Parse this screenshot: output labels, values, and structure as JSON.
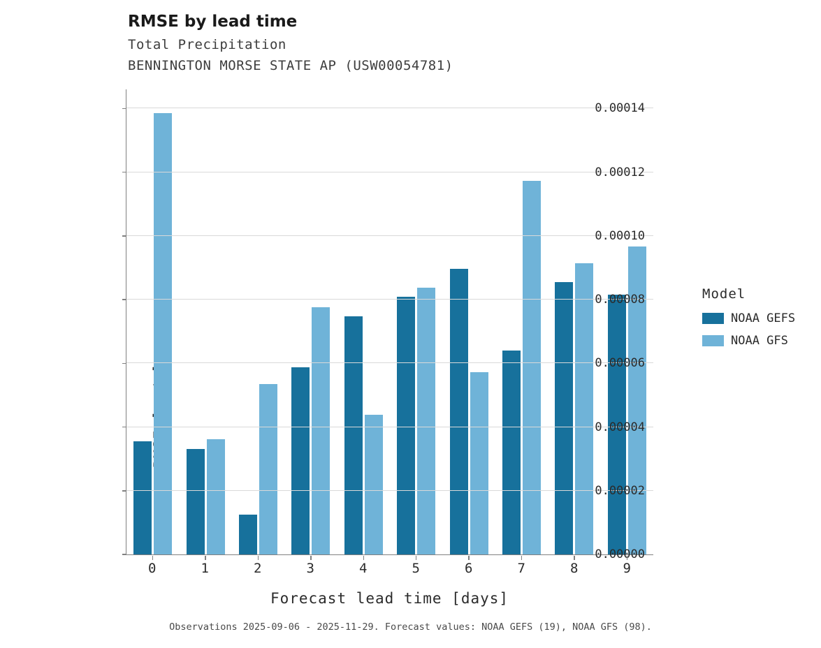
{
  "title": "RMSE by lead time",
  "subtitle1": "Total Precipitation",
  "subtitle2": "BENNINGTON MORSE STATE AP (USW00054781)",
  "caption": "Observations 2025-09-06 - 2025-11-29. Forecast values: NOAA GEFS (19), NOAA GFS (98).",
  "legend": {
    "title": "Model",
    "entries": [
      {
        "label": "NOAA GEFS",
        "color": "#17719c"
      },
      {
        "label": "NOAA GFS",
        "color": "#6fb3d8"
      }
    ]
  },
  "chart_data": {
    "type": "bar",
    "title": "RMSE by lead time",
    "xlabel": "Forecast lead time [days]",
    "ylabel": "RMSE [mm/s]",
    "categories": [
      "0",
      "1",
      "2",
      "3",
      "4",
      "5",
      "6",
      "7",
      "8",
      "9"
    ],
    "series": [
      {
        "name": "NOAA GEFS",
        "color": "#17719c",
        "values": [
          3.55e-05,
          3.32e-05,
          1.25e-05,
          5.88e-05,
          7.47e-05,
          8.1e-05,
          8.97e-05,
          6.4e-05,
          8.55e-05,
          8.15e-05
        ]
      },
      {
        "name": "NOAA GFS",
        "color": "#6fb3d8",
        "values": [
          0.0001385,
          3.62e-05,
          5.35e-05,
          7.77e-05,
          4.38e-05,
          8.38e-05,
          5.72e-05,
          0.0001172,
          9.15e-05,
          9.67e-05
        ]
      }
    ],
    "ylim": [
      0,
      0.000146
    ],
    "yticks": [
      0.0,
      2e-05,
      4e-05,
      6e-05,
      8e-05,
      0.0001,
      0.00012,
      0.00014
    ],
    "ytick_labels": [
      "0.00000",
      "0.00002",
      "0.00004",
      "0.00006",
      "0.00008",
      "0.00010",
      "0.00012",
      "0.00014"
    ],
    "grid": true,
    "legend_position": "right"
  }
}
